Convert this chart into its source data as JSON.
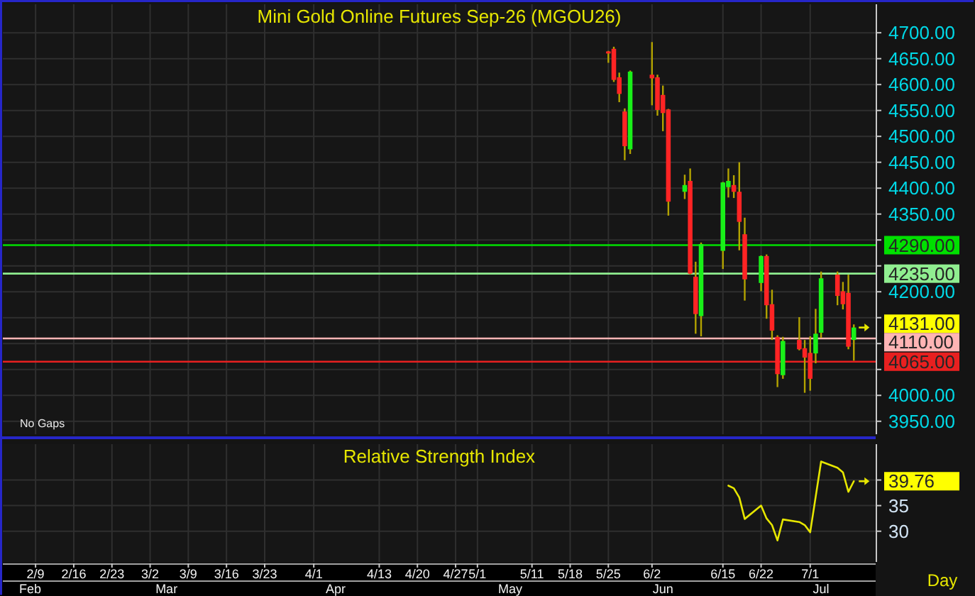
{
  "chart_data": [
    {
      "type": "candlestick",
      "title": "Mini Gold Online Futures Sep-26 (MGOU26)",
      "x": [
        "--05-25",
        "--05-26",
        "--05-27",
        "--05-28",
        "--05-29",
        "--06-02",
        "--06-03",
        "--06-04",
        "--06-05",
        "--06-08",
        "--06-09",
        "--06-10",
        "--06-11",
        "--06-15",
        "--06-16",
        "--06-17",
        "--06-18",
        "--06-19",
        "--06-22",
        "--06-23",
        "--06-24",
        "--06-25",
        "--06-26",
        "--06-29",
        "--06-30",
        "--07-01",
        "--07-02",
        "--07-03",
        "--07-06",
        "--07-07",
        "--07-08",
        "--07-09"
      ],
      "ohlc": [
        [
          4664,
          4665,
          4642,
          4660
        ],
        [
          4669,
          4673,
          4605,
          4609
        ],
        [
          4614,
          4623,
          4566,
          4582
        ],
        [
          4548,
          4554,
          4454,
          4481
        ],
        [
          4475,
          4627,
          4466,
          4625
        ],
        [
          4619,
          4682,
          4560,
          4612
        ],
        [
          4614,
          4619,
          4540,
          4551
        ],
        [
          4580,
          4598,
          4510,
          4545
        ],
        [
          4552,
          4553,
          4347,
          4374
        ],
        [
          4393,
          4426,
          4379,
          4406
        ],
        [
          4414,
          4438,
          4233,
          4235
        ],
        [
          4229,
          4258,
          4119,
          4157
        ],
        [
          4153,
          4295,
          4114,
          4292
        ],
        [
          4279,
          4412,
          4244,
          4411
        ],
        [
          4402,
          4438,
          4382,
          4414
        ],
        [
          4406,
          4425,
          4381,
          4393
        ],
        [
          4393,
          4450,
          4280,
          4335
        ],
        [
          4311,
          4343,
          4183,
          4224
        ],
        [
          4217,
          4270,
          4201,
          4269
        ],
        [
          4269,
          4272,
          4148,
          4174
        ],
        [
          4176,
          4204,
          4107,
          4125
        ],
        [
          4113,
          4116,
          4016,
          4041
        ],
        [
          4039,
          4113,
          4032,
          4105
        ],
        [
          4107,
          4151,
          4087,
          4089
        ],
        [
          4091,
          4107,
          4005,
          4073
        ],
        [
          4082,
          4114,
          4009,
          4032
        ],
        [
          4081,
          4167,
          4062,
          4119
        ],
        [
          4121,
          4239,
          4111,
          4226
        ],
        [
          4233,
          4239,
          4174,
          4192
        ],
        [
          4201,
          4219,
          4166,
          4176
        ],
        [
          4198,
          4233,
          4089,
          4094
        ],
        [
          4107,
          4137,
          4067,
          4131
        ]
      ],
      "xlim": [
        "--02-03",
        "--07-13"
      ],
      "xticks": [
        {
          "value": "--02-09",
          "label": null
        },
        {
          "value": "--02-16",
          "label": null
        },
        {
          "value": "--02-23",
          "label": null
        },
        {
          "value": "--03-02",
          "label": null
        },
        {
          "value": "--03-09",
          "label": null
        },
        {
          "value": "--03-16",
          "label": null
        },
        {
          "value": "--03-23",
          "label": null
        },
        {
          "value": "--04-01",
          "label": null
        },
        {
          "value": "--04-13",
          "label": null
        },
        {
          "value": "--04-20",
          "label": null
        },
        {
          "value": "--04-27",
          "label": null
        },
        {
          "value": "--05-01",
          "label": null
        },
        {
          "value": "--05-11",
          "label": null
        },
        {
          "value": "--05-18",
          "label": null
        },
        {
          "value": "--05-25",
          "label": null
        },
        {
          "value": "--06-02",
          "label": null
        },
        {
          "value": "--06-15",
          "label": null
        },
        {
          "value": "--06-22",
          "label": null
        },
        {
          "value": "--07-01",
          "label": null
        }
      ],
      "ylim": [
        3925,
        4755
      ],
      "yticks": [
        {
          "value": 4700,
          "label": "4700.00"
        },
        {
          "value": 4650,
          "label": "4650.00"
        },
        {
          "value": 4600,
          "label": "4600.00"
        },
        {
          "value": 4550,
          "label": "4550.00"
        },
        {
          "value": 4500,
          "label": "4500.00"
        },
        {
          "value": 4450,
          "label": "4450.00"
        },
        {
          "value": 4400,
          "label": "4400.00"
        },
        {
          "value": 4350,
          "label": "4350.00"
        },
        {
          "value": 4300,
          "label": null
        },
        {
          "value": 4250,
          "label": null
        },
        {
          "value": 4200,
          "label": "4200.00"
        },
        {
          "value": 4150,
          "label": null
        },
        {
          "value": 4100,
          "label": null
        },
        {
          "value": 4050,
          "label": null
        },
        {
          "value": 4000,
          "label": "4000.00"
        },
        {
          "value": 3950,
          "label": "3950.00"
        }
      ],
      "grid": true,
      "tick_labels": "y",
      "ref_lines": [
        {
          "axis": "y",
          "value": 4290,
          "label": "4290.00",
          "color": "#00e000"
        },
        {
          "axis": "y",
          "value": 4235,
          "label": "4235.00",
          "color": "#90ee90"
        },
        {
          "axis": "y",
          "value": 4110,
          "label": "4110.00",
          "color": "#ffb4b4"
        },
        {
          "axis": "y",
          "value": 4065,
          "label": "4065.00",
          "color": "#e82020"
        }
      ],
      "annotations": [
        "No Gaps",
        {
          "text": "4131.00",
          "x": "--07-09",
          "y": 4131
        }
      ]
    },
    {
      "type": "line",
      "title": "Relative Strength Index",
      "x": [
        "--06-16",
        "--06-17",
        "--06-18",
        "--06-19",
        "--06-22",
        "--06-23",
        "--06-24",
        "--06-25",
        "--06-26",
        "--06-29",
        "--06-30",
        "--07-01",
        "--07-02",
        "--07-03",
        "--07-06",
        "--07-07",
        "--07-08",
        "--07-09"
      ],
      "values": [
        38.9,
        38.4,
        36.6,
        32.4,
        35,
        32.5,
        31.2,
        28.2,
        32.3,
        31.8,
        31.2,
        29.8,
        36.7,
        43.6,
        42.4,
        41.5,
        37.7,
        39.76
      ],
      "color": "#e6e600",
      "xlim": [
        "--02-03",
        "--07-13"
      ],
      "xticks": [
        {
          "value": "--02-09",
          "label": "2/9"
        },
        {
          "value": "--02-16",
          "label": "2/16"
        },
        {
          "value": "--02-23",
          "label": "2/23"
        },
        {
          "value": "--03-02",
          "label": "3/2"
        },
        {
          "value": "--03-09",
          "label": "3/9"
        },
        {
          "value": "--03-16",
          "label": "3/16"
        },
        {
          "value": "--03-23",
          "label": "3/23"
        },
        {
          "value": "--04-01",
          "label": "4/1"
        },
        {
          "value": "--04-13",
          "label": "4/13"
        },
        {
          "value": "--04-20",
          "label": "4/20"
        },
        {
          "value": "--04-27",
          "label": "4/27"
        },
        {
          "value": "--05-01",
          "label": "5/1"
        },
        {
          "value": "--05-11",
          "label": "5/11"
        },
        {
          "value": "--05-18",
          "label": "5/18"
        },
        {
          "value": "--05-25",
          "label": "5/25"
        },
        {
          "value": "--06-02",
          "label": "6/2"
        },
        {
          "value": "--06-15",
          "label": "6/15"
        },
        {
          "value": "--06-22",
          "label": "6/22"
        },
        {
          "value": "--07-01",
          "label": "7/1"
        }
      ],
      "x2lim": [
        "--02-03",
        "--07-13"
      ],
      "x2ticks": [
        {
          "value": "--02-08",
          "label": "Feb"
        },
        {
          "value": "--03-05",
          "label": "Mar"
        },
        {
          "value": "--04-05",
          "label": "Apr"
        },
        {
          "value": "--05-07",
          "label": "May"
        },
        {
          "value": "--06-04",
          "label": "Jun"
        },
        {
          "value": "--07-03",
          "label": "Jul"
        }
      ],
      "xlabel": "Day",
      "ylim": [
        24,
        47
      ],
      "yticks": [
        30,
        35,
        {
          "value": 40,
          "label": null
        }
      ],
      "grid": true,
      "annotations": [
        {
          "text": "39.76",
          "x": "--07-09",
          "y": 39.76
        }
      ]
    }
  ]
}
